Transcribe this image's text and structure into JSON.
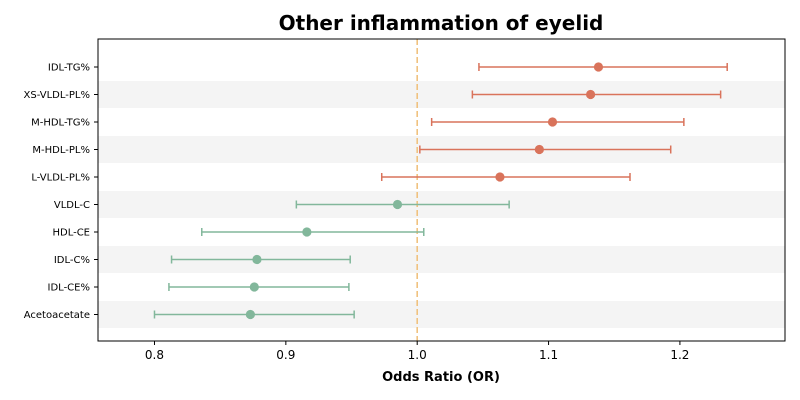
{
  "chart_data": {
    "type": "forest",
    "title": "Other inflammation of eyelid",
    "xlabel": "Odds Ratio (OR)",
    "xlim": [
      0.757,
      1.28
    ],
    "xticks": [
      0.8,
      0.9,
      1.0,
      1.1,
      1.2
    ],
    "xtick_labels": [
      "0.8",
      "0.9",
      "1.0",
      "1.1",
      "1.2"
    ],
    "reference_line": 1.0,
    "colors": {
      "positive": "#d9735b",
      "negative": "#82b79b",
      "reference": "#f0c27f",
      "band": "#f4f4f4"
    },
    "rows": [
      {
        "label": "IDL-TG%",
        "or": 1.138,
        "lower": 1.047,
        "upper": 1.236
      },
      {
        "label": "XS-VLDL-PL%",
        "or": 1.132,
        "lower": 1.042,
        "upper": 1.231
      },
      {
        "label": "M-HDL-TG%",
        "or": 1.103,
        "lower": 1.011,
        "upper": 1.203
      },
      {
        "label": "M-HDL-PL%",
        "or": 1.093,
        "lower": 1.002,
        "upper": 1.193
      },
      {
        "label": "L-VLDL-PL%",
        "or": 1.063,
        "lower": 0.973,
        "upper": 1.162
      },
      {
        "label": "VLDL-C",
        "or": 0.985,
        "lower": 0.908,
        "upper": 1.07
      },
      {
        "label": "HDL-CE",
        "or": 0.916,
        "lower": 0.836,
        "upper": 1.005
      },
      {
        "label": "IDL-C%",
        "or": 0.878,
        "lower": 0.813,
        "upper": 0.949
      },
      {
        "label": "IDL-CE%",
        "or": 0.876,
        "lower": 0.811,
        "upper": 0.948
      },
      {
        "label": "Acetoacetate",
        "or": 0.873,
        "lower": 0.8,
        "upper": 0.952
      }
    ]
  }
}
